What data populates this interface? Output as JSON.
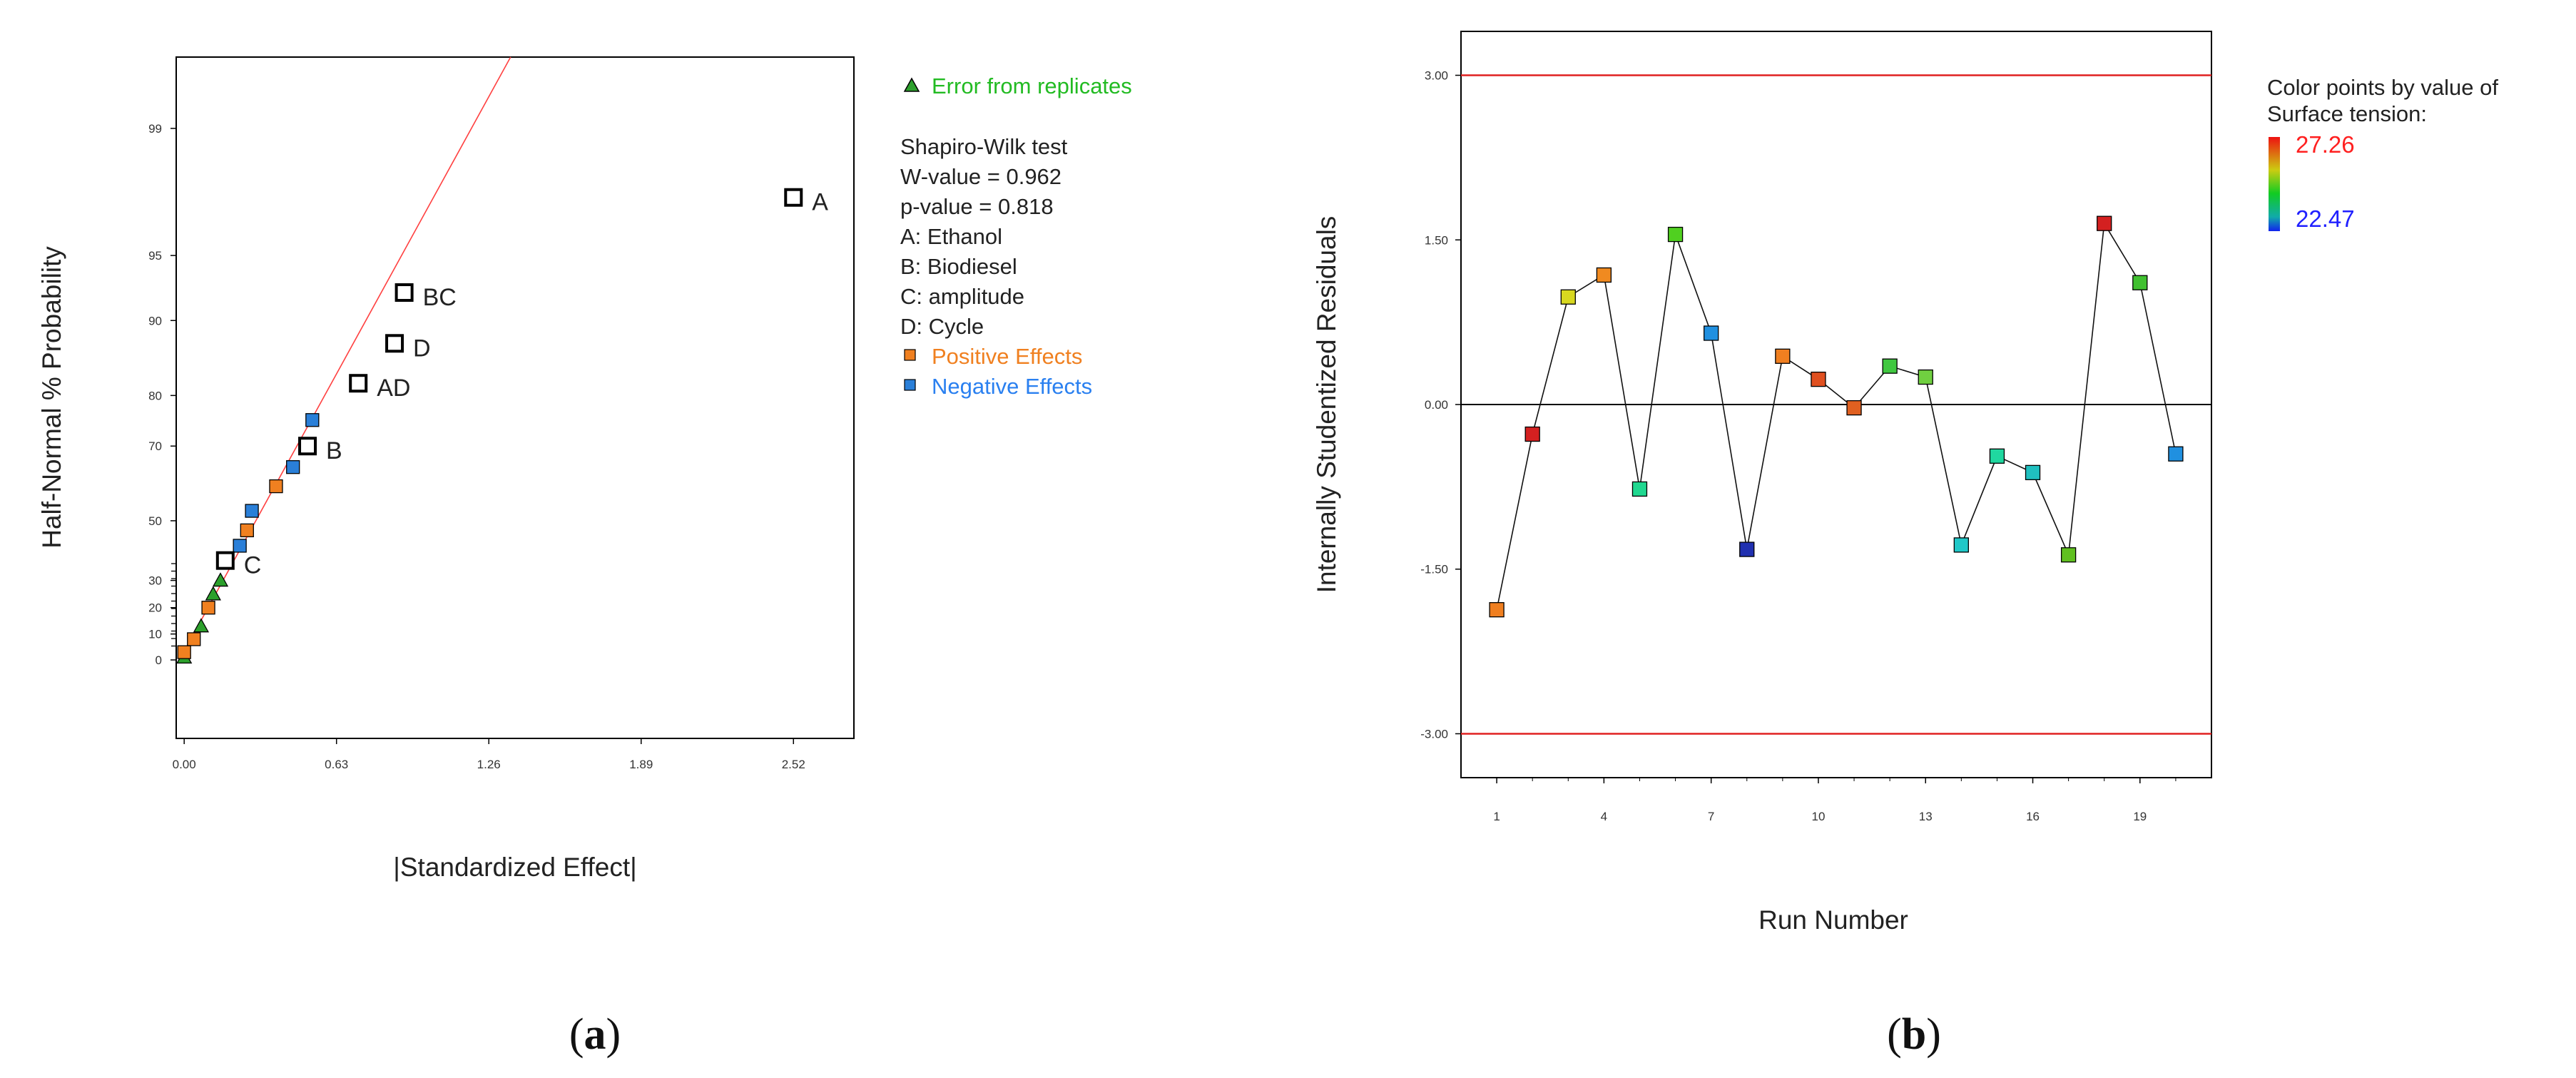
{
  "chart_data": [
    {
      "panel": "a",
      "type": "scatter",
      "title": "",
      "xlabel": "|Standardized Effect|",
      "ylabel": "Half-Normal % Probability",
      "xlim": [
        -0.033,
        2.77
      ],
      "xticks": [
        "0.00",
        "0.63",
        "1.26",
        "1.89",
        "2.52"
      ],
      "yticks": [
        "0",
        "10",
        "20",
        "30",
        "50",
        "70",
        "80",
        "90",
        "95",
        "99"
      ],
      "yticks_prob": [
        0,
        10,
        20,
        30,
        50,
        70,
        80,
        90,
        95,
        99
      ],
      "legend": {
        "error_label": "Error from replicates",
        "shapiro_title": "Shapiro-Wilk test",
        "w_value": "W-value = 0.962",
        "p_value": "p-value = 0.818",
        "factors": [
          "A: Ethanol",
          "B: Biodiesel",
          "C: amplitude",
          "D: Cycle"
        ],
        "positive_label": "Positive Effects",
        "negative_label": "Negative Effects"
      },
      "colors": {
        "error": "#2ca02c",
        "positive": "#f08020",
        "negative": "#2a7fd8",
        "fitline": "#ff4040",
        "error_text": "#22bb22",
        "positive_text": "#f08020",
        "negative_text": "#2a80f0"
      },
      "labeled_effects": [
        {
          "name": "A",
          "x": 2.52,
          "prob": 97.5
        },
        {
          "name": "BC",
          "x": 0.91,
          "prob": 92.5
        },
        {
          "name": "D",
          "x": 0.87,
          "prob": 87.5
        },
        {
          "name": "AD",
          "x": 0.72,
          "prob": 82.0
        },
        {
          "name": "B",
          "x": 0.51,
          "prob": 70.0
        },
        {
          "name": "C",
          "x": 0.17,
          "prob": 37.0
        }
      ],
      "positive_effects": [
        {
          "x": 0.0,
          "prob": 3.0
        },
        {
          "x": 0.04,
          "prob": 8.0
        },
        {
          "x": 0.1,
          "prob": 20.0
        },
        {
          "x": 0.26,
          "prob": 47.0
        },
        {
          "x": 0.38,
          "prob": 60.0
        }
      ],
      "negative_effects": [
        {
          "x": 0.23,
          "prob": 42.0
        },
        {
          "x": 0.28,
          "prob": 53.0
        },
        {
          "x": 0.45,
          "prob": 65.0
        },
        {
          "x": 0.53,
          "prob": 75.5
        }
      ],
      "error_points": [
        {
          "x": 0.0,
          "prob": 1.0
        },
        {
          "x": 0.07,
          "prob": 13.0
        },
        {
          "x": 0.12,
          "prob": 25.0
        },
        {
          "x": 0.15,
          "prob": 30.0
        }
      ],
      "fit_line": {
        "x0": -0.02,
        "prob0": 0.0,
        "x1": 1.35,
        "prob1": 99.97
      }
    },
    {
      "panel": "b",
      "type": "line",
      "title": "",
      "xlabel": "Run Number",
      "ylabel": "Internally Studentized Residuals",
      "xlim": [
        0.0,
        21.0
      ],
      "ylim": [
        -3.4,
        3.4
      ],
      "xticks": [
        "1",
        "4",
        "7",
        "10",
        "13",
        "16",
        "19"
      ],
      "xtick_values": [
        1,
        4,
        7,
        10,
        13,
        16,
        19
      ],
      "yticks": [
        "3.00",
        "1.50",
        "0.00",
        "-1.50",
        "-3.00"
      ],
      "ytick_values": [
        3.0,
        1.5,
        0.0,
        -1.5,
        -3.0
      ],
      "limit_lines": [
        3.0,
        -3.0
      ],
      "x": [
        1,
        2,
        3,
        4,
        5,
        6,
        7,
        8,
        9,
        10,
        11,
        12,
        13,
        14,
        15,
        16,
        17,
        18,
        19,
        20
      ],
      "values": [
        -1.87,
        -0.27,
        0.98,
        1.18,
        -0.77,
        1.55,
        0.65,
        -1.32,
        0.44,
        0.23,
        -0.03,
        0.35,
        0.25,
        -1.28,
        -0.47,
        -0.62,
        -1.37,
        1.65,
        1.11,
        -0.45
      ],
      "point_colors": [
        "#f07f20",
        "#d42020",
        "#d8d820",
        "#f08a20",
        "#20d890",
        "#50d020",
        "#2090e0",
        "#2030b0",
        "#f07f20",
        "#e05020",
        "#e06020",
        "#40c840",
        "#70d040",
        "#20c8c8",
        "#20d8a0",
        "#20c0c0",
        "#60c020",
        "#d42020",
        "#40c030",
        "#2090e0"
      ],
      "legend": {
        "title_line1": "Color points by value of",
        "title_line2": "Surface tension:",
        "max_value": "27.26",
        "min_value": "22.47"
      },
      "colors": {
        "limit": "#e02020",
        "line": "#111111",
        "max_text": "#ff2020",
        "min_text": "#2020ff"
      }
    }
  ],
  "captions": {
    "a_open": "(",
    "a_letter": "a",
    "a_close": ")",
    "b_open": "(",
    "b_letter": "b",
    "b_close": ")"
  }
}
